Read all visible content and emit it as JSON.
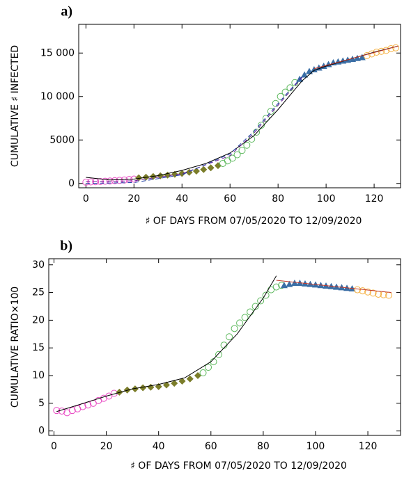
{
  "chart_data": [
    {
      "type": "scatter",
      "title": "a)",
      "xlabel": "♯ OF DAYS FROM 07/05/2020 TO 12/09/2020",
      "ylabel": "CUMULATIVE ♯ INFECTED",
      "xlim": [
        -3,
        131
      ],
      "ylim": [
        -500,
        18300
      ],
      "xticks": [
        0,
        20,
        40,
        60,
        80,
        100,
        120
      ],
      "yticks": [
        0,
        5000,
        {
          "value": 10000,
          "label": "10 000"
        },
        {
          "value": 15000,
          "label": "15 000"
        }
      ],
      "grid": false,
      "series": [
        {
          "marker": "circle-open",
          "color": "#e94cc4",
          "x": [
            0,
            2,
            4,
            6,
            8,
            10,
            12,
            14,
            16,
            18,
            20
          ],
          "values": [
            150,
            180,
            200,
            220,
            250,
            280,
            320,
            360,
            400,
            450,
            500
          ]
        },
        {
          "marker": "diamond",
          "color": "#7b7d2a",
          "x": [
            22,
            25,
            28,
            31,
            34,
            37,
            40,
            43,
            46,
            49,
            52,
            55
          ],
          "values": [
            650,
            720,
            800,
            880,
            960,
            1050,
            1150,
            1280,
            1420,
            1600,
            1800,
            2050
          ]
        },
        {
          "marker": "circle-open",
          "color": "#5cb85c",
          "x": [
            57,
            59,
            61,
            63,
            65,
            67,
            69,
            71,
            73,
            75,
            77,
            79,
            81,
            83,
            85,
            87
          ],
          "values": [
            2300,
            2600,
            2900,
            3300,
            3800,
            4400,
            5100,
            5900,
            6700,
            7500,
            8300,
            9200,
            10000,
            10500,
            11000,
            11600
          ]
        },
        {
          "marker": "triangle",
          "color": "#3a6ea5",
          "x": [
            89,
            91,
            93,
            95,
            97,
            99,
            101,
            103,
            105,
            107,
            109,
            111,
            113,
            115
          ],
          "values": [
            12000,
            12500,
            12900,
            13100,
            13300,
            13500,
            13700,
            13900,
            14000,
            14100,
            14200,
            14300,
            14400,
            14500
          ]
        },
        {
          "marker": "circle-open",
          "color": "#f5b041",
          "x": [
            117,
            119,
            121,
            123,
            125,
            127,
            129
          ],
          "values": [
            14700,
            14900,
            15100,
            15200,
            15300,
            15500,
            15600
          ]
        },
        {
          "marker": "line",
          "color": "#000000",
          "x": [
            0,
            10,
            20,
            30,
            40,
            50,
            60,
            70,
            80,
            90,
            95,
            100,
            110,
            120,
            130
          ],
          "values": [
            700,
            400,
            500,
            900,
            1500,
            2300,
            3500,
            5500,
            8500,
            11800,
            13000,
            13500,
            14300,
            15100,
            15800
          ]
        },
        {
          "marker": "line",
          "color": "#c0392b",
          "x": [
            95,
            130
          ],
          "values": [
            13200,
            15800
          ]
        },
        {
          "marker": "line",
          "dash": true,
          "color": "#6a1b9a",
          "x": [
            0,
            20,
            40,
            60,
            70,
            80,
            90
          ],
          "values": [
            200,
            300,
            1100,
            3200,
            5800,
            9000,
            12200
          ]
        },
        {
          "marker": "line",
          "dash": true,
          "color": "#1f3fa8",
          "x": [
            0,
            20,
            40,
            60,
            70,
            80,
            90
          ],
          "values": [
            0,
            100,
            1000,
            3400,
            6000,
            9200,
            12300
          ]
        }
      ]
    },
    {
      "type": "scatter",
      "title": "b)",
      "xlabel": "♯ OF DAYS FROM 07/05/2020 TO 12/09/2020",
      "ylabel": "CUMULATIVE RATIO×100",
      "xlim": [
        -2,
        132.5
      ],
      "ylim": [
        -0.8,
        31.1
      ],
      "xticks": [
        0,
        20,
        40,
        60,
        80,
        100,
        120
      ],
      "yticks": [
        0,
        5,
        10,
        15,
        20,
        25,
        30
      ],
      "grid": false,
      "series": [
        {
          "marker": "circle-open",
          "color": "#e94cc4",
          "x": [
            1,
            3,
            5,
            7,
            9,
            11,
            13,
            15,
            17,
            19,
            21,
            23
          ],
          "values": [
            3.7,
            3.6,
            3.3,
            3.7,
            4.0,
            4.4,
            4.7,
            5.0,
            5.5,
            5.9,
            6.3,
            6.8
          ]
        },
        {
          "marker": "diamond",
          "color": "#7b7d2a",
          "x": [
            25,
            28,
            31,
            34,
            37,
            40,
            43,
            46,
            49,
            52,
            55
          ],
          "values": [
            7.0,
            7.4,
            7.6,
            7.8,
            7.9,
            8.0,
            8.3,
            8.6,
            9.0,
            9.4,
            10.0
          ]
        },
        {
          "marker": "circle-open",
          "color": "#5cb85c",
          "x": [
            57,
            59,
            61,
            63,
            65,
            67,
            69,
            71,
            73,
            75,
            77,
            79,
            81,
            83,
            85,
            87
          ],
          "values": [
            10.5,
            11.5,
            12.5,
            13.8,
            15.5,
            17,
            18.5,
            19.5,
            20.5,
            21.5,
            22.5,
            23.5,
            24.5,
            25.5,
            26,
            26.3
          ]
        },
        {
          "marker": "triangle",
          "color": "#3a6ea5",
          "x": [
            88,
            90,
            92,
            94,
            96,
            98,
            100,
            102,
            104,
            106,
            108,
            110,
            112,
            114
          ],
          "values": [
            26.3,
            26.5,
            26.7,
            26.7,
            26.6,
            26.5,
            26.4,
            26.3,
            26.2,
            26.1,
            26,
            25.9,
            25.8,
            25.7
          ]
        },
        {
          "marker": "circle-open",
          "color": "#f5b041",
          "x": [
            116,
            118,
            120,
            122,
            124,
            126,
            128
          ],
          "values": [
            25.5,
            25.3,
            25.1,
            24.9,
            24.7,
            24.6,
            24.5
          ]
        },
        {
          "marker": "line",
          "color": "#000000",
          "x": [
            1,
            10,
            20,
            30,
            40,
            50,
            60,
            70,
            80,
            85
          ],
          "values": [
            3.5,
            4.8,
            6.3,
            7.6,
            8.4,
            9.6,
            12.5,
            17.5,
            24,
            28
          ]
        },
        {
          "marker": "line",
          "color": "#c0392b",
          "x": [
            85,
            129
          ],
          "values": [
            27.2,
            25
          ]
        }
      ]
    }
  ]
}
